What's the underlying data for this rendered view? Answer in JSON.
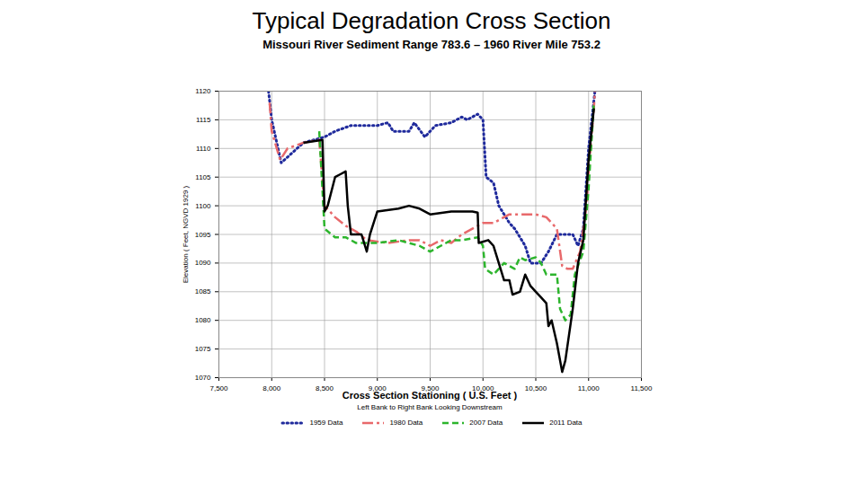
{
  "chart_data": {
    "type": "line",
    "title": "Typical Degradation Cross Section",
    "subtitle": "Missouri River Sediment Range 783.6 – 1960 River Mile 753.2",
    "xlabel": "Cross Section Stationing ( U.S. Feet )",
    "xlabel_note": "Left Bank to Right Bank Looking Downstream",
    "ylabel": "Elevation ( Feet, NGVD 1929 )",
    "xlim": [
      7500,
      11500
    ],
    "xticks": [
      {
        "value": 7500,
        "label": "7,500"
      },
      {
        "value": 8000,
        "label": "8,000"
      },
      {
        "value": 8500,
        "label": "8,500"
      },
      {
        "value": 9000,
        "label": "9,000"
      },
      {
        "value": 9500,
        "label": "9,500"
      },
      {
        "value": 10000,
        "label": "10,000"
      },
      {
        "value": 10500,
        "label": "10,500"
      },
      {
        "value": 11000,
        "label": "11,000"
      },
      {
        "value": 11500,
        "label": "11,500"
      }
    ],
    "ylim": [
      1070,
      1120
    ],
    "yticks": [
      1070,
      1075,
      1080,
      1085,
      1090,
      1095,
      1100,
      1105,
      1110,
      1115,
      1120
    ],
    "grid": true,
    "legend": "bottom",
    "series": [
      {
        "name": "1959 Data",
        "color": "#1f2a9c",
        "line_style": "dotted",
        "x": [
          7970,
          8000,
          8090,
          8300,
          8500,
          8600,
          8750,
          9000,
          9100,
          9150,
          9300,
          9350,
          9450,
          9550,
          9700,
          9800,
          9850,
          9950,
          10000,
          10030,
          10100,
          10150,
          10250,
          10300,
          10400,
          10450,
          10550,
          10620,
          10700,
          10850,
          10900,
          10950,
          11000,
          11060
        ],
        "values": [
          1120,
          1115,
          1107.5,
          1111,
          1112,
          1113,
          1114,
          1114,
          1114.5,
          1113,
          1113,
          1114.5,
          1112,
          1114,
          1114.5,
          1115.5,
          1115,
          1116,
          1115,
          1105,
          1104,
          1100,
          1097,
          1096,
          1093,
          1090,
          1090,
          1092,
          1095,
          1095,
          1093,
          1096,
          1110,
          1120
        ]
      },
      {
        "name": "1980 Data",
        "color": "#e8696b",
        "line_style": "dashdot",
        "x": [
          7980,
          8000,
          8080,
          8150,
          8300,
          8450,
          8500,
          8600,
          8700,
          8800,
          8900,
          9100,
          9300,
          9400,
          9500,
          9600,
          9700,
          9800,
          9900,
          10000,
          10100,
          10250,
          10500,
          10600,
          10700,
          10750,
          10800,
          10850,
          10920,
          10980,
          11000,
          11050,
          11060
        ],
        "values": [
          1118,
          1113,
          1108,
          1110,
          1111,
          1111.5,
          1100,
          1098,
          1096.5,
          1095.5,
          1094,
          1093.5,
          1094,
          1094,
          1093,
          1094,
          1093.5,
          1095,
          1096,
          1097,
          1097,
          1098.5,
          1098.5,
          1098,
          1096,
          1089.5,
          1089,
          1089,
          1092,
          1100,
          1106,
          1117,
          1120
        ]
      },
      {
        "name": "2007 Data",
        "color": "#2db52d",
        "line_style": "dashed",
        "x": [
          8450,
          8500,
          8600,
          8700,
          8800,
          9000,
          9200,
          9400,
          9500,
          9600,
          9700,
          9800,
          9950,
          10000,
          10020,
          10100,
          10200,
          10300,
          10350,
          10400,
          10500,
          10550,
          10600,
          10700,
          10730,
          10780,
          10830,
          10870,
          10950,
          11000,
          11050
        ],
        "values": [
          1113,
          1096,
          1094.5,
          1094.5,
          1093.5,
          1093.5,
          1094,
          1093,
          1092,
          1093,
          1094,
          1094,
          1094.5,
          1093,
          1089,
          1088,
          1090,
          1089,
          1091,
          1090.5,
          1091,
          1090,
          1088,
          1088,
          1082,
          1080,
          1081,
          1088,
          1092,
          1103,
          1118
        ]
      },
      {
        "name": "2011 Data",
        "color": "#000000",
        "line_style": "solid",
        "x": [
          8300,
          8480,
          8500,
          8530,
          8600,
          8650,
          8700,
          8720,
          8750,
          8850,
          8900,
          8930,
          9000,
          9200,
          9300,
          9400,
          9500,
          9700,
          9900,
          9950,
          9960,
          10050,
          10100,
          10200,
          10250,
          10280,
          10350,
          10400,
          10450,
          10500,
          10550,
          10600,
          10620,
          10650,
          10700,
          10750,
          10780,
          10850,
          10900,
          10950,
          11000,
          11050
        ],
        "values": [
          1111,
          1111.5,
          1099,
          1100,
          1105,
          1105.5,
          1106,
          1100,
          1095,
          1095,
          1092,
          1095,
          1099,
          1099.5,
          1100,
          1099.5,
          1098.5,
          1099,
          1099,
          1098.8,
          1093.5,
          1094,
          1093,
          1087,
          1087,
          1084.5,
          1085,
          1088,
          1086,
          1085,
          1084,
          1083,
          1079,
          1080,
          1076,
          1071,
          1073,
          1082,
          1090,
          1094,
          1108,
          1117
        ]
      }
    ]
  }
}
